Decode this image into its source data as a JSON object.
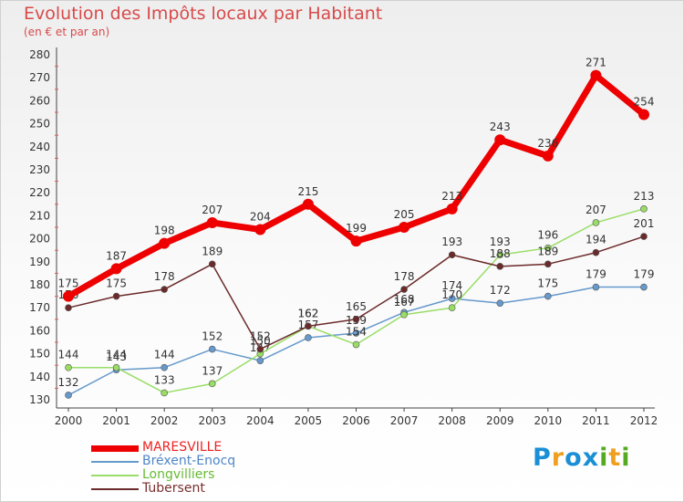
{
  "chart_data": {
    "type": "line",
    "title": "Evolution des Impôts locaux par Habitant",
    "subtitle": "(en € et par an)",
    "x": [
      "2000",
      "2001",
      "2002",
      "2003",
      "2004",
      "2005",
      "2006",
      "2007",
      "2008",
      "2009",
      "2010",
      "2011",
      "2012"
    ],
    "ylim": [
      130,
      280
    ],
    "yticks": [
      130,
      140,
      150,
      160,
      170,
      180,
      190,
      200,
      210,
      220,
      230,
      240,
      250,
      260,
      270,
      280
    ],
    "grid": false,
    "legend_position": "bottom-left",
    "series": [
      {
        "name": "MARESVILLE",
        "color": "#ee0000",
        "values": [
          175,
          187,
          198,
          207,
          204,
          215,
          199,
          205,
          213,
          243,
          236,
          271,
          254
        ]
      },
      {
        "name": "Bréxent-Enocq",
        "color": "#6699cc",
        "values": [
          132,
          143,
          144,
          152,
          147,
          157,
          159,
          168,
          174,
          172,
          175,
          179,
          179
        ]
      },
      {
        "name": "Longvilliers",
        "color": "#99dd66",
        "values": [
          144,
          144,
          133,
          137,
          150,
          162,
          154,
          167,
          170,
          193,
          196,
          207,
          213
        ]
      },
      {
        "name": "Tubersent",
        "color": "#6b2a2a",
        "values": [
          170,
          175,
          178,
          189,
          152,
          162,
          165,
          178,
          193,
          188,
          189,
          194,
          201
        ]
      }
    ]
  },
  "brand": {
    "letters": [
      "P",
      "r",
      "o",
      "x",
      "i",
      "t",
      "i"
    ],
    "colors": [
      "#1a8fd6",
      "#f0a020",
      "#1a8fd6",
      "#1a8fd6",
      "#55aa22",
      "#f0a020",
      "#55aa22"
    ]
  }
}
